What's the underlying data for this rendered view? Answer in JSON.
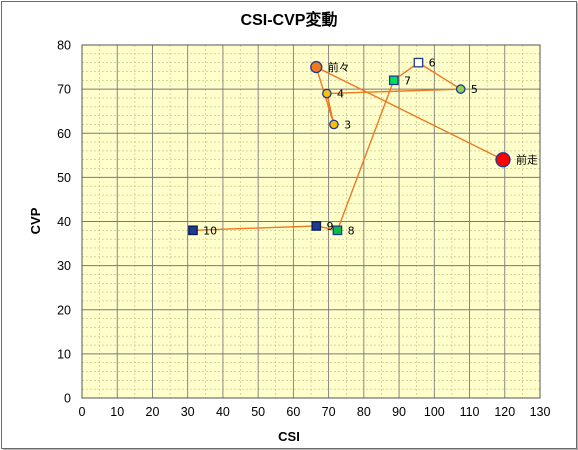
{
  "chart_data": {
    "type": "scatter",
    "title": "CSI-CVP変動",
    "xlabel": "CSI",
    "ylabel": "CVP",
    "xlim": [
      0,
      130
    ],
    "ylim": [
      0,
      80
    ],
    "x_major_step": 10,
    "y_major_step": 10,
    "x_minor_step": 5,
    "y_minor_step": 2,
    "xticks": [
      "0",
      "10",
      "20",
      "30",
      "40",
      "50",
      "60",
      "70",
      "80",
      "90",
      "100",
      "110",
      "120",
      "130"
    ],
    "yticks": [
      "0",
      "10",
      "20",
      "30",
      "40",
      "50",
      "60",
      "70",
      "80"
    ],
    "grid": true,
    "plot_background": "#ffffcc",
    "line_color": "#f07820",
    "points": [
      {
        "label": "前走",
        "x": 119.5,
        "y": 54,
        "shape": "circle",
        "fill": "#ff0000",
        "stroke": "#1f3a93",
        "size": "large"
      },
      {
        "label": "前々",
        "x": 66.5,
        "y": 75,
        "shape": "circle",
        "fill": "#f07820",
        "stroke": "#1f3a93",
        "size": "medium"
      },
      {
        "label": "3",
        "x": 71.5,
        "y": 62,
        "shape": "circle",
        "fill": "#ffc000",
        "stroke": "#1f3a93",
        "size": "small"
      },
      {
        "label": "4",
        "x": 69.5,
        "y": 69,
        "shape": "circle",
        "fill": "#ffc000",
        "stroke": "#1f3a93",
        "size": "small"
      },
      {
        "label": "5",
        "x": 107.5,
        "y": 70,
        "shape": "circle",
        "fill": "#92d050",
        "stroke": "#1f3a93",
        "size": "small"
      },
      {
        "label": "6",
        "x": 95.5,
        "y": 76,
        "shape": "square",
        "fill": "#ffffff",
        "stroke": "#1f3a93",
        "size": "small"
      },
      {
        "label": "7",
        "x": 88.5,
        "y": 72,
        "shape": "square",
        "fill": "#00e05a",
        "stroke": "#1f3a93",
        "size": "small"
      },
      {
        "label": "8",
        "x": 72.5,
        "y": 38,
        "shape": "square",
        "fill": "#00c040",
        "stroke": "#1f3a93",
        "size": "small"
      },
      {
        "label": "9",
        "x": 66.5,
        "y": 39,
        "shape": "square",
        "fill": "#1f3a93",
        "stroke": "#0a1a5a",
        "size": "small"
      },
      {
        "label": "10",
        "x": 31.5,
        "y": 38,
        "shape": "square",
        "fill": "#1f3a93",
        "stroke": "#0a1a5a",
        "size": "small"
      }
    ]
  }
}
